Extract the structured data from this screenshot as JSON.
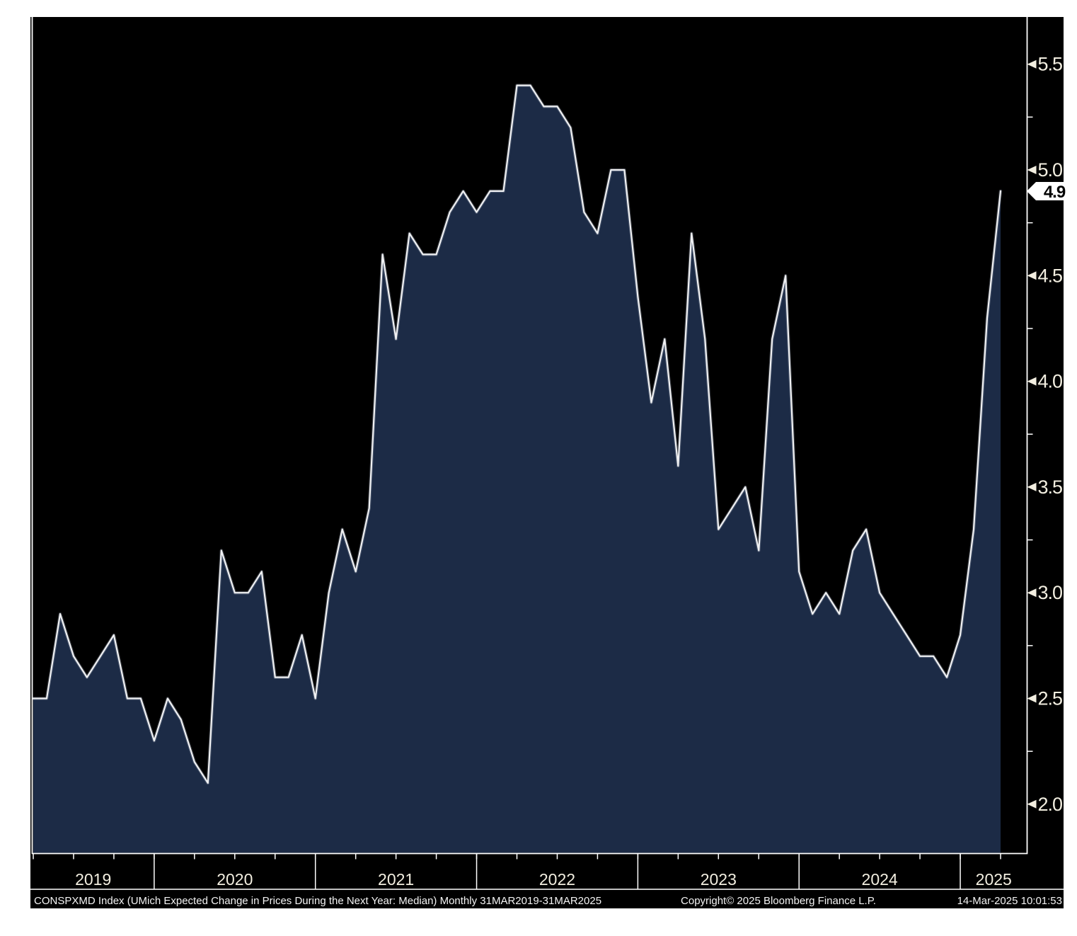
{
  "chart_data": {
    "type": "area",
    "title": "CONSPXMD Index (UMich Expected Change in Prices During the Next Year: Median)",
    "frequency_range": "Monthly 31MAR2019-31MAR2025",
    "x_start": "31MAR2019",
    "x_end": "31MAR2025",
    "x_year_labels": [
      "2019",
      "2020",
      "2021",
      "2022",
      "2023",
      "2024",
      "2025"
    ],
    "values": [
      2.5,
      2.5,
      2.9,
      2.7,
      2.6,
      2.7,
      2.8,
      2.5,
      2.5,
      2.3,
      2.5,
      2.4,
      2.2,
      2.1,
      3.2,
      3.0,
      3.0,
      3.1,
      2.6,
      2.6,
      2.8,
      2.5,
      3.0,
      3.3,
      3.1,
      3.4,
      4.6,
      4.2,
      4.7,
      4.6,
      4.6,
      4.8,
      4.9,
      4.8,
      4.9,
      4.9,
      5.4,
      5.4,
      5.3,
      5.3,
      5.2,
      4.8,
      4.7,
      5.0,
      5.0,
      4.4,
      3.9,
      4.2,
      3.6,
      4.7,
      4.2,
      3.3,
      3.4,
      3.5,
      3.2,
      4.2,
      4.5,
      3.1,
      2.9,
      3.0,
      2.9,
      3.2,
      3.3,
      3.0,
      2.9,
      2.8,
      2.7,
      2.7,
      2.6,
      2.8,
      3.3,
      4.3,
      4.9
    ],
    "y_ticks_major": [
      2.0,
      2.5,
      3.0,
      3.5,
      4.0,
      4.5,
      5.0,
      5.5
    ],
    "y_minor_step": 0.25,
    "ylim": [
      1.77,
      5.72
    ],
    "grid": "off",
    "legend": "none",
    "last_value": 4.9,
    "last_label": "4.9",
    "colors": {
      "panel_background": "#000000",
      "area_fill": "#1c2b46",
      "line": "#f0f1f3",
      "axis": "#ffffff",
      "tick_label": "#f2eee0",
      "badge_background": "#ffffff",
      "badge_text": "#000000"
    }
  },
  "footer": {
    "left": "CONSPXMD Index (UMich Expected Change in Prices During the Next Year: Median)  Monthly 31MAR2019-31MAR2025",
    "copyright": "Copyright© 2025 Bloomberg Finance L.P.",
    "timestamp": "14-Mar-2025 10:01:53"
  }
}
